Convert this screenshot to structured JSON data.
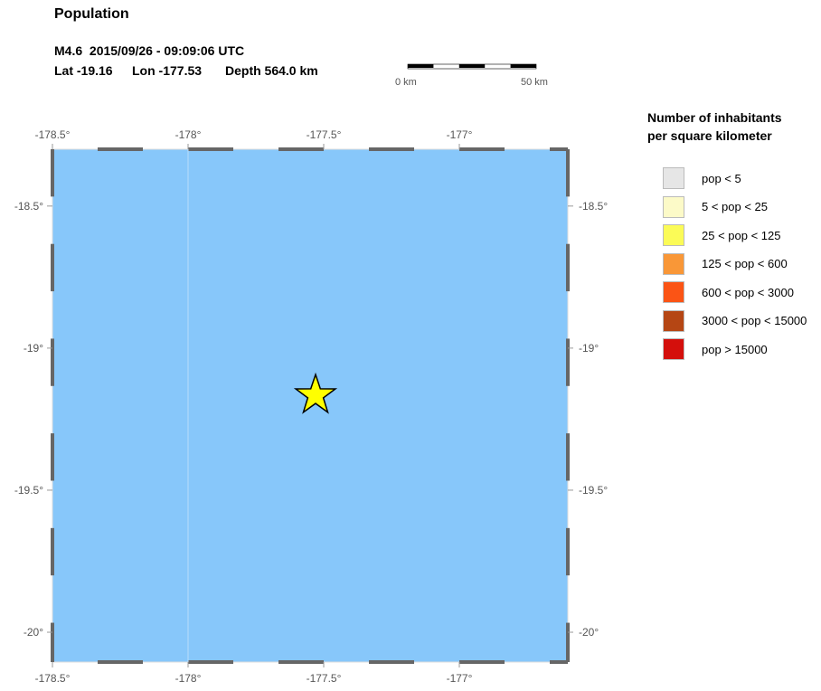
{
  "header": {
    "title": "Population",
    "event_line": "M4.6  2015/09/26 - 09:09:06 UTC",
    "lat": "Lat -19.16",
    "lon": "Lon -177.53",
    "depth": "Depth 564.0 km"
  },
  "scale_bar": {
    "start_label": "0 km",
    "end_label": "50 km",
    "segments": 5
  },
  "map": {
    "lon_range": [
      -178.5,
      -176.6
    ],
    "lat_range": [
      -18.3,
      -20.105
    ],
    "lon_ticks": [
      "-178.5°",
      "-178°",
      "-177.5°",
      "-177°"
    ],
    "lon_tick_values": [
      -178.5,
      -178,
      -177.5,
      -177
    ],
    "lat_ticks": [
      "-18.5°",
      "-19°",
      "-19.5°",
      "-20°"
    ],
    "lat_tick_values": [
      -18.5,
      -19,
      -19.5,
      -20
    ],
    "water_color": "#87c7fa",
    "epicenter": {
      "lat": -19.16,
      "lon": -177.53,
      "marker": "star-icon",
      "color": "#ffff00"
    }
  },
  "legend": {
    "title_line1": "Number of inhabitants",
    "title_line2": "per square kilometer",
    "items": [
      {
        "label": "pop < 5",
        "color": "#e6e6e6"
      },
      {
        "label": "5 < pop < 25",
        "color": "#fcfac8"
      },
      {
        "label": "25 < pop < 125",
        "color": "#fbfb57"
      },
      {
        "label": "125 < pop < 600",
        "color": "#f99737"
      },
      {
        "label": "600 < pop < 3000",
        "color": "#fb5415"
      },
      {
        "label": "3000 < pop < 15000",
        "color": "#b54614"
      },
      {
        "label": "pop > 15000",
        "color": "#d40f0c"
      }
    ]
  }
}
